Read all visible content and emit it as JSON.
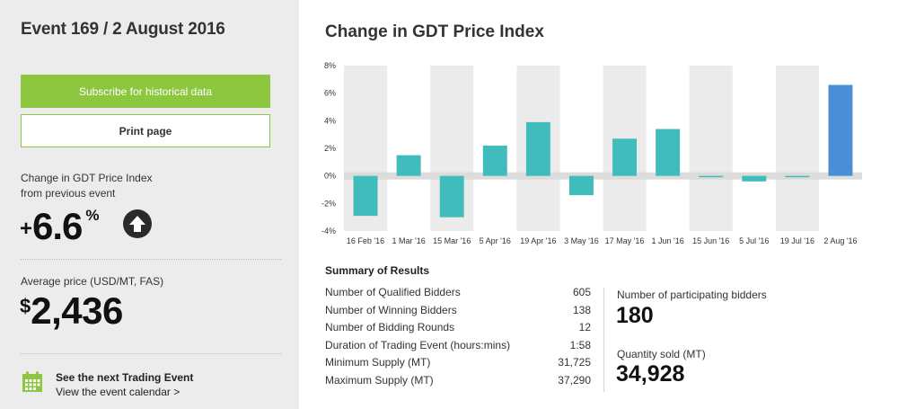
{
  "sidebar": {
    "event_title": "Event 169 / 2 August 2016",
    "subscribe_label": "Subscribe for historical data",
    "print_label": "Print page",
    "change_label_line1": "Change in GDT Price Index",
    "change_label_line2": "from previous event",
    "change_sign": "+",
    "change_value": "6.6",
    "change_unit": "%",
    "change_direction_icon": "arrow-up-icon",
    "avg_price_label": "Average price (USD/MT, FAS)",
    "avg_price_sign": "$",
    "avg_price_value": "2,436",
    "next_event_title": "See the next Trading Event",
    "next_event_link": "View the event calendar >",
    "accent_color": "#8dc63f"
  },
  "chart_title": "Change in GDT Price Index",
  "chart_data": {
    "type": "bar",
    "categories": [
      "16 Feb '16",
      "1 Mar '16",
      "15 Mar '16",
      "5 Apr '16",
      "19 Apr '16",
      "3 May '16",
      "17 May '16",
      "1 Jun '16",
      "15 Jun '16",
      "5 Jul '16",
      "19 Jul '16",
      "2 Aug '16"
    ],
    "values": [
      -2.9,
      1.5,
      -3.0,
      2.2,
      3.9,
      -1.4,
      2.7,
      3.4,
      -0.1,
      -0.4,
      -0.1,
      6.6
    ],
    "ylim": [
      -4,
      8
    ],
    "yticks": [
      "-4%",
      "-2%",
      "0%",
      "2%",
      "4%",
      "6%",
      "8%"
    ],
    "title": "Change in GDT Price Index",
    "series_color": "#41bcbc",
    "highlight_color": "#4a8fd6"
  },
  "summary": {
    "title": "Summary of Results",
    "rows": [
      {
        "label": "Number of Qualified Bidders",
        "value": "605"
      },
      {
        "label": "Number of Winning Bidders",
        "value": "138"
      },
      {
        "label": "Number of Bidding Rounds",
        "value": "12"
      },
      {
        "label": "Duration of Trading Event (hours:mins)",
        "value": "1:58"
      },
      {
        "label": "Minimum Supply (MT)",
        "value": "31,725"
      },
      {
        "label": "Maximum Supply (MT)",
        "value": "37,290"
      }
    ],
    "participating_label": "Number of participating bidders",
    "participating_value": "180",
    "quantity_label": "Quantity sold (MT)",
    "quantity_value": "34,928"
  }
}
